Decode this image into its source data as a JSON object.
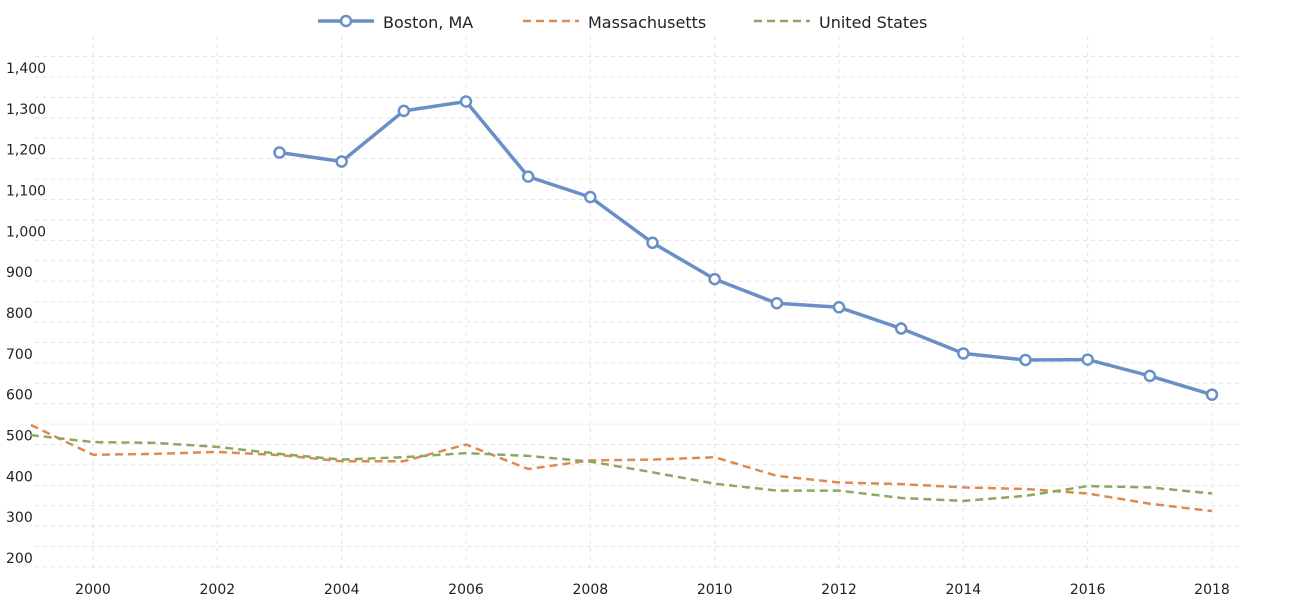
{
  "chart_data": {
    "type": "line",
    "title": "",
    "xlabel": "",
    "ylabel": "",
    "xlim": [
      1999,
      2018.5
    ],
    "ylim": [
      200,
      1450
    ],
    "x_ticks": [
      "2000",
      "2002",
      "2004",
      "2006",
      "2008",
      "2010",
      "2012",
      "2014",
      "2016",
      "2018"
    ],
    "y_ticks": [
      "200",
      "300",
      "400",
      "500",
      "600",
      "700",
      "800",
      "900",
      "1,000",
      "1,100",
      "1,200",
      "1,300",
      "1,400"
    ],
    "grid": true,
    "legend_position": "top-center",
    "series": [
      {
        "name": "Boston, MA",
        "color": "#6a8fc7",
        "style": "solid-with-markers",
        "x": [
          2003,
          2004,
          2005,
          2006,
          2007,
          2008,
          2009,
          2010,
          2011,
          2012,
          2013,
          2014,
          2015,
          2016,
          2017,
          2018
        ],
        "values": [
          1215,
          1193,
          1317,
          1340,
          1156,
          1106,
          994,
          905,
          846,
          836,
          784,
          723,
          707,
          708,
          668,
          622
        ]
      },
      {
        "name": "Massachusetts",
        "color": "#dd8a52",
        "style": "dashed",
        "x": [
          1999,
          2000,
          2001,
          2002,
          2003,
          2004,
          2005,
          2006,
          2007,
          2008,
          2009,
          2010,
          2011,
          2012,
          2013,
          2014,
          2015,
          2016,
          2017,
          2018
        ],
        "values": [
          548,
          475,
          477,
          482,
          474,
          459,
          459,
          500,
          440,
          461,
          463,
          469,
          423,
          407,
          403,
          395,
          391,
          380,
          355,
          337
        ]
      },
      {
        "name": "United States",
        "color": "#8aa862",
        "style": "dashed",
        "x": [
          1999,
          2000,
          2001,
          2002,
          2003,
          2004,
          2005,
          2006,
          2007,
          2008,
          2009,
          2010,
          2011,
          2012,
          2013,
          2014,
          2015,
          2016,
          2017,
          2018
        ],
        "values": [
          523,
          506,
          504,
          494,
          477,
          463,
          469,
          479,
          472,
          458,
          432,
          404,
          387,
          387,
          369,
          362,
          374,
          398,
          395,
          380
        ]
      }
    ]
  }
}
